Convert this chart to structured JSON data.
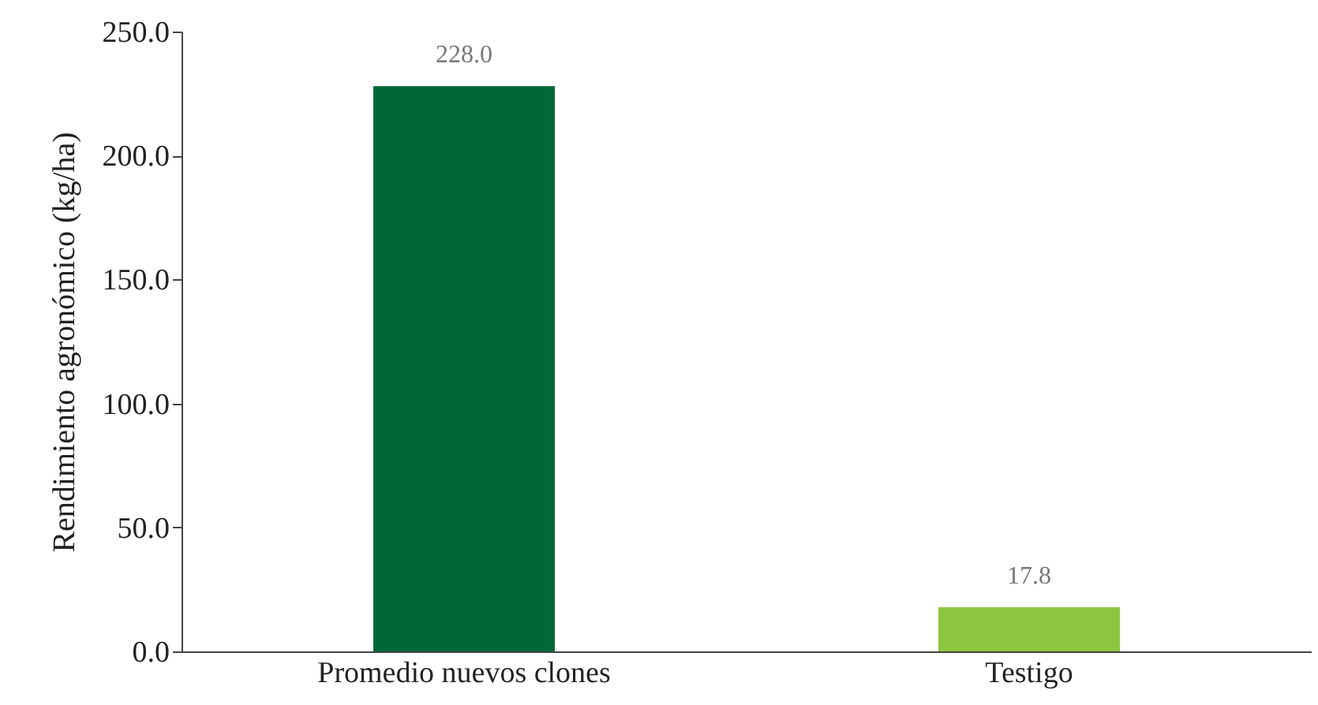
{
  "chart_data": {
    "type": "bar",
    "ylabel": "Rendimiento agronómico (kg/ha)",
    "categories": [
      "Promedio nuevos clones",
      "Testigo"
    ],
    "values": [
      228.0,
      17.8
    ],
    "value_labels": [
      "228.0",
      "17.8"
    ],
    "colors": [
      "#006837",
      "#8dc63f"
    ],
    "ylim": [
      0,
      250
    ],
    "yticks": [
      {
        "value": 0,
        "label": "0.0"
      },
      {
        "value": 50,
        "label": "50.0"
      },
      {
        "value": 100,
        "label": "100.0"
      },
      {
        "value": 150,
        "label": "150.0"
      },
      {
        "value": 200,
        "label": "200.0"
      },
      {
        "value": 250,
        "label": "250.0"
      }
    ],
    "grid": false
  }
}
